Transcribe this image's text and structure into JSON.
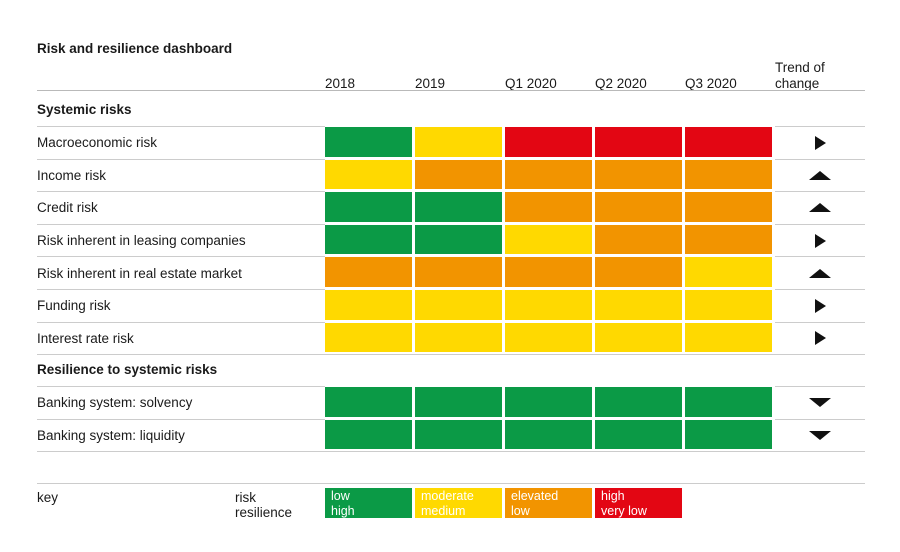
{
  "title": "Risk and resilience dashboard",
  "columns": [
    "2018",
    "2019",
    "Q1 2020",
    "Q2 2020",
    "Q3 2020"
  ],
  "trend_header": "Trend of change",
  "sections": [
    {
      "label": "Systemic risks",
      "rows": [
        {
          "label": "Macroeconomic risk",
          "cells": [
            "green",
            "yellow",
            "red",
            "red",
            "red"
          ],
          "trend": "right"
        },
        {
          "label": "Income risk",
          "cells": [
            "yellow",
            "orange",
            "orange",
            "orange",
            "orange"
          ],
          "trend": "up"
        },
        {
          "label": "Credit risk",
          "cells": [
            "green",
            "green",
            "orange",
            "orange",
            "orange"
          ],
          "trend": "up"
        },
        {
          "label": "Risk inherent in leasing companies",
          "cells": [
            "green",
            "green",
            "yellow",
            "orange",
            "orange"
          ],
          "trend": "right"
        },
        {
          "label": "Risk inherent in real estate market",
          "cells": [
            "orange",
            "orange",
            "orange",
            "orange",
            "yellow"
          ],
          "trend": "up"
        },
        {
          "label": "Funding risk",
          "cells": [
            "yellow",
            "yellow",
            "yellow",
            "yellow",
            "yellow"
          ],
          "trend": "right"
        },
        {
          "label": "Interest rate risk",
          "cells": [
            "yellow",
            "yellow",
            "yellow",
            "yellow",
            "yellow"
          ],
          "trend": "right"
        }
      ]
    },
    {
      "label": "Resilience to systemic risks",
      "rows": [
        {
          "label": "Banking system: solvency",
          "cells": [
            "green",
            "green",
            "green",
            "green",
            "green"
          ],
          "trend": "down"
        },
        {
          "label": "Banking system: liquidity",
          "cells": [
            "green",
            "green",
            "green",
            "green",
            "green"
          ],
          "trend": "down"
        }
      ]
    }
  ],
  "key": {
    "label": "key",
    "row_labels": [
      "risk",
      "resilience"
    ],
    "entries": [
      {
        "color": "green",
        "risk": "low",
        "resilience": "high"
      },
      {
        "color": "yellow",
        "risk": "moderate",
        "resilience": "medium"
      },
      {
        "color": "orange",
        "risk": "elevated",
        "resilience": "low"
      },
      {
        "color": "red",
        "risk": "high",
        "resilience": "very low"
      }
    ]
  },
  "colors": {
    "green": "#0b9a46",
    "yellow": "#ffd900",
    "orange": "#f29400",
    "red": "#e30613",
    "arrow": "#111111",
    "separator_line": "#cccccc",
    "header_line": "#b9b9b9"
  },
  "chart_data": {
    "type": "heatmap",
    "title": "Risk and resilience dashboard",
    "x_categories": [
      "2018",
      "2019",
      "Q1 2020",
      "Q2 2020",
      "Q3 2020"
    ],
    "risk_scale": [
      "low",
      "moderate",
      "elevated",
      "high"
    ],
    "resilience_scale": [
      "high",
      "medium",
      "low",
      "very low"
    ],
    "groups": [
      {
        "name": "Systemic risks",
        "scale": "risk",
        "rows": [
          {
            "label": "Macroeconomic risk",
            "values": [
              "low",
              "moderate",
              "high",
              "high",
              "high"
            ],
            "trend_of_change": "unchanged"
          },
          {
            "label": "Income risk",
            "values": [
              "moderate",
              "elevated",
              "elevated",
              "elevated",
              "elevated"
            ],
            "trend_of_change": "increasing"
          },
          {
            "label": "Credit risk",
            "values": [
              "low",
              "low",
              "elevated",
              "elevated",
              "elevated"
            ],
            "trend_of_change": "increasing"
          },
          {
            "label": "Risk inherent in leasing companies",
            "values": [
              "low",
              "low",
              "moderate",
              "elevated",
              "elevated"
            ],
            "trend_of_change": "unchanged"
          },
          {
            "label": "Risk inherent in real estate market",
            "values": [
              "elevated",
              "elevated",
              "elevated",
              "elevated",
              "moderate"
            ],
            "trend_of_change": "increasing"
          },
          {
            "label": "Funding risk",
            "values": [
              "moderate",
              "moderate",
              "moderate",
              "moderate",
              "moderate"
            ],
            "trend_of_change": "unchanged"
          },
          {
            "label": "Interest rate risk",
            "values": [
              "moderate",
              "moderate",
              "moderate",
              "moderate",
              "moderate"
            ],
            "trend_of_change": "unchanged"
          }
        ]
      },
      {
        "name": "Resilience to systemic risks",
        "scale": "resilience",
        "rows": [
          {
            "label": "Banking system: solvency",
            "values": [
              "high",
              "high",
              "high",
              "high",
              "high"
            ],
            "trend_of_change": "decreasing"
          },
          {
            "label": "Banking system: liquidity",
            "values": [
              "high",
              "high",
              "high",
              "high",
              "high"
            ],
            "trend_of_change": "decreasing"
          }
        ]
      }
    ],
    "legend": [
      {
        "color": "#0b9a46",
        "risk": "low",
        "resilience": "high"
      },
      {
        "color": "#ffd900",
        "risk": "moderate",
        "resilience": "medium"
      },
      {
        "color": "#f29400",
        "risk": "elevated",
        "resilience": "low"
      },
      {
        "color": "#e30613",
        "risk": "high",
        "resilience": "very low"
      }
    ],
    "legend_position": "bottom"
  }
}
